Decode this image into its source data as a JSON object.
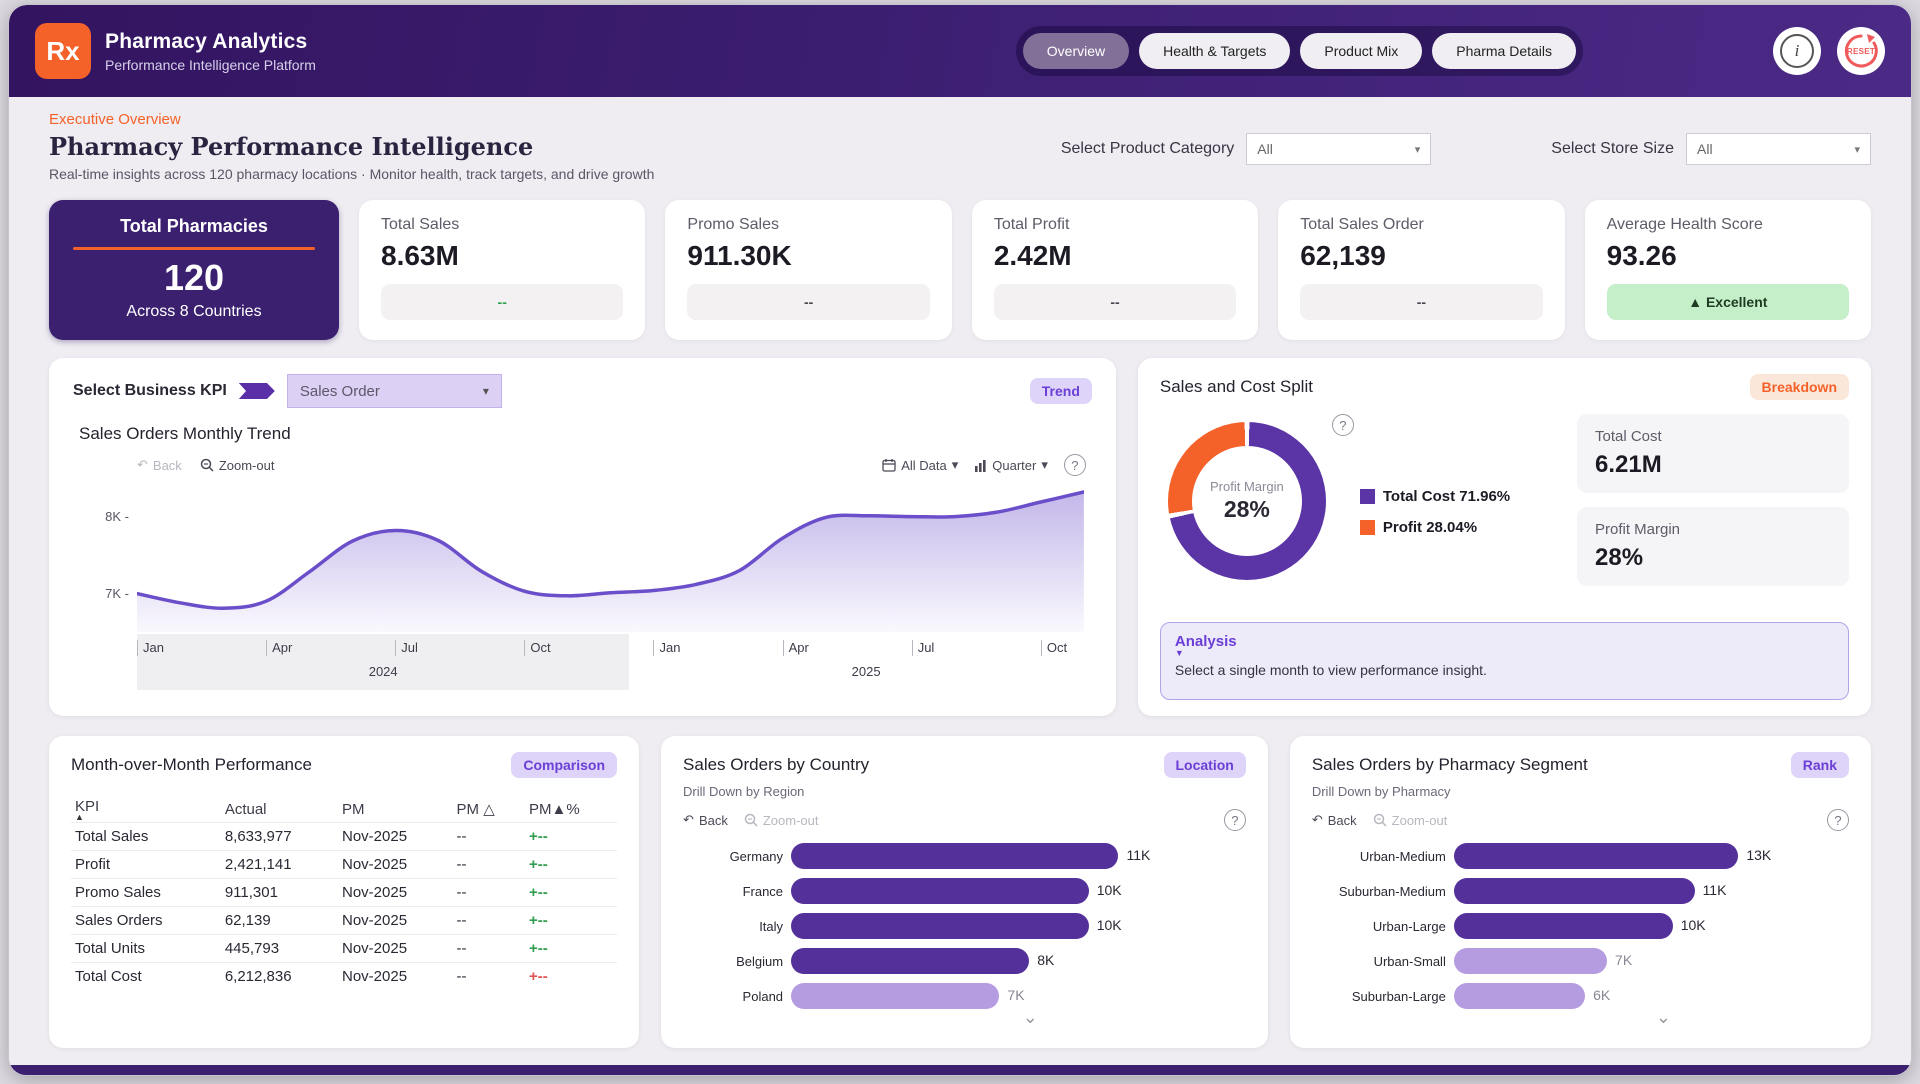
{
  "header": {
    "logo_text": "Rx",
    "title": "Pharmacy Analytics",
    "subtitle": "Performance Intelligence Platform",
    "tabs": [
      {
        "label": "Overview",
        "active": true
      },
      {
        "label": "Health & Targets",
        "active": false
      },
      {
        "label": "Product Mix",
        "active": false
      },
      {
        "label": "Pharma Details",
        "active": false
      }
    ],
    "info_label": "i",
    "reset_label": "RESET"
  },
  "overview": {
    "eyebrow": "Executive Overview",
    "title": "Pharmacy Performance Intelligence",
    "subtitle": "Real-time insights across 120 pharmacy locations · Monitor health, track targets, and drive growth",
    "filters": [
      {
        "label": "Select Product Category",
        "value": "All"
      },
      {
        "label": "Select Store Size",
        "value": "All"
      }
    ]
  },
  "kpis": {
    "primary": {
      "title": "Total Pharmacies",
      "value": "120",
      "subtitle": "Across 8 Countries"
    },
    "cards": [
      {
        "title": "Total Sales",
        "value": "8.63M",
        "delta": "--",
        "delta_style": "green-text"
      },
      {
        "title": "Promo Sales",
        "value": "911.30K",
        "delta": "--",
        "delta_style": ""
      },
      {
        "title": "Total Profit",
        "value": "2.42M",
        "delta": "--",
        "delta_style": ""
      },
      {
        "title": "Total Sales Order",
        "value": "62,139",
        "delta": "--",
        "delta_style": ""
      },
      {
        "title": "Average Health Score",
        "value": "93.26",
        "delta": "▲ Excellent",
        "delta_style": "excellent"
      }
    ]
  },
  "panels": {
    "trend": {
      "kpi_label": "Select Business KPI",
      "kpi_value": "Sales Order",
      "badge": "Trend",
      "back": "Back",
      "zoom_out": "Zoom-out",
      "range_label": "All Data",
      "granularity_label": "Quarter",
      "help": "?"
    },
    "split": {
      "title": "Sales and Cost Split",
      "badge": "Breakdown",
      "boxes": [
        {
          "label": "Total Cost",
          "value": "6.21M"
        },
        {
          "label": "Profit Margin",
          "value": "28%"
        }
      ],
      "analysis_title": "Analysis",
      "analysis_text": "Select a single month to view performance insight.",
      "help": "?"
    },
    "mom": {
      "title": "Month-over-Month Performance",
      "badge": "Comparison",
      "columns": [
        "KPI",
        "Actual",
        "PM",
        "PM △",
        "PM▲%"
      ],
      "rows": [
        {
          "kpi": "Total Sales",
          "actual": "8,633,977",
          "pm": "Nov-2025",
          "pm_delta": "--",
          "pm_pct": "+--",
          "pm_pct_color": "green"
        },
        {
          "kpi": "Profit",
          "actual": "2,421,141",
          "pm": "Nov-2025",
          "pm_delta": "--",
          "pm_pct": "+--",
          "pm_pct_color": "green"
        },
        {
          "kpi": "Promo Sales",
          "actual": "911,301",
          "pm": "Nov-2025",
          "pm_delta": "--",
          "pm_pct": "+--",
          "pm_pct_color": "green"
        },
        {
          "kpi": "Sales Orders",
          "actual": "62,139",
          "pm": "Nov-2025",
          "pm_delta": "--",
          "pm_pct": "+--",
          "pm_pct_color": "green"
        },
        {
          "kpi": "Total Units",
          "actual": "445,793",
          "pm": "Nov-2025",
          "pm_delta": "--",
          "pm_pct": "+--",
          "pm_pct_color": "green"
        },
        {
          "kpi": "Total Cost",
          "actual": "6,212,836",
          "pm": "Nov-2025",
          "pm_delta": "--",
          "pm_pct": "+--",
          "pm_pct_color": "red"
        }
      ]
    },
    "country": {
      "title": "Sales Orders by Country",
      "badge": "Location",
      "subtitle": "Drill Down by Region",
      "back": "Back",
      "zoom_out": "Zoom-out",
      "help": "?"
    },
    "segment": {
      "title": "Sales Orders by Pharmacy Segment",
      "badge": "Rank",
      "subtitle": "Drill Down by Pharmacy",
      "back": "Back",
      "zoom_out": "Zoom-out",
      "help": "?"
    }
  },
  "chart_data": [
    {
      "id": "sales_orders_monthly_trend",
      "type": "line",
      "title": "Sales Orders Monthly Trend",
      "x": [
        "Jan 2024",
        "Feb 2024",
        "Mar 2024",
        "Apr 2024",
        "May 2024",
        "Jun 2024",
        "Jul 2024",
        "Aug 2024",
        "Sep 2024",
        "Oct 2024",
        "Nov 2024",
        "Dec 2024",
        "Jan 2025",
        "Feb 2025",
        "Mar 2025",
        "Apr 2025",
        "May 2025",
        "Jun 2025",
        "Jul 2025",
        "Aug 2025",
        "Sep 2025",
        "Oct 2025",
        "Nov 2025"
      ],
      "values": [
        7000,
        6880,
        6810,
        6900,
        7280,
        7680,
        7820,
        7690,
        7290,
        7030,
        6970,
        7010,
        7040,
        7120,
        7300,
        7720,
        7990,
        8010,
        8000,
        8000,
        8060,
        8190,
        8320
      ],
      "ylim": [
        6500,
        8450
      ],
      "y_ticks": [
        {
          "value": 7000,
          "label": "7K"
        },
        {
          "value": 8000,
          "label": "8K"
        }
      ],
      "x_ticks": [
        {
          "i": 0,
          "label": "Jan"
        },
        {
          "i": 3,
          "label": "Apr"
        },
        {
          "i": 6,
          "label": "Jul"
        },
        {
          "i": 9,
          "label": "Oct"
        },
        {
          "i": 12,
          "label": "Jan"
        },
        {
          "i": 15,
          "label": "Apr"
        },
        {
          "i": 18,
          "label": "Jul"
        },
        {
          "i": 21,
          "label": "Oct"
        }
      ],
      "years": [
        {
          "label": "2024",
          "pos": 26
        },
        {
          "label": "2025",
          "pos": 77
        }
      ],
      "line_color": "#6b4ec9",
      "grid": false,
      "legend": "none"
    },
    {
      "id": "sales_cost_split_donut",
      "type": "pie",
      "title": "Sales and Cost Split",
      "slices": [
        {
          "label": "Total Cost",
          "pct": 71.96,
          "color": "#5b35a6"
        },
        {
          "label": "Profit",
          "pct": 28.04,
          "color": "#f4622a"
        }
      ],
      "center_label": "Profit Margin",
      "center_value": "28%",
      "legend_position": "right"
    },
    {
      "id": "sales_orders_by_country",
      "type": "bar",
      "title": "Sales Orders by Country",
      "categories": [
        "Germany",
        "France",
        "Italy",
        "Belgium",
        "Poland"
      ],
      "values": [
        11000,
        10000,
        10000,
        8000,
        7000
      ],
      "value_labels": [
        "11K",
        "10K",
        "10K",
        "8K",
        "7K"
      ],
      "dim": [
        false,
        false,
        false,
        false,
        true
      ],
      "orientation": "horizontal"
    },
    {
      "id": "sales_orders_by_segment",
      "type": "bar",
      "title": "Sales Orders by Pharmacy Segment",
      "categories": [
        "Urban-Medium",
        "Suburban-Medium",
        "Urban-Large",
        "Urban-Small",
        "Suburban-Large"
      ],
      "values": [
        13000,
        11000,
        10000,
        7000,
        6000
      ],
      "value_labels": [
        "13K",
        "11K",
        "10K",
        "7K",
        "6K"
      ],
      "dim": [
        false,
        false,
        false,
        true,
        true
      ],
      "orientation": "horizontal"
    }
  ],
  "theme": {
    "header_purple": "#3b2070",
    "accent_orange": "#f4622a",
    "bar_dark": "#54309a",
    "bar_light": "#b59ce1",
    "badge_purple_bg": "#ded3f8",
    "badge_purple_text": "#6b3fd6"
  }
}
